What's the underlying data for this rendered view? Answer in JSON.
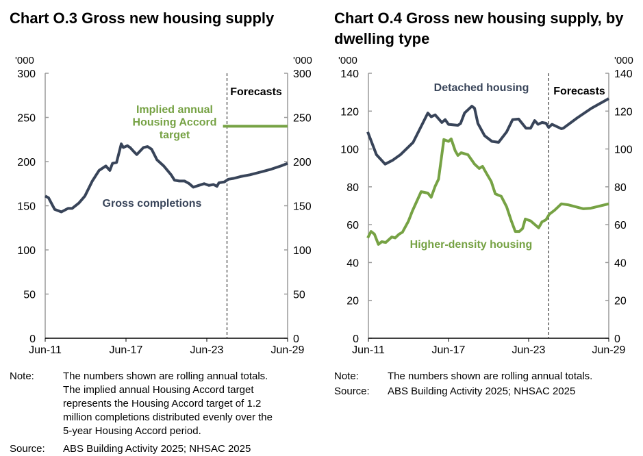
{
  "colors": {
    "navy": "#384459",
    "green": "#76a244",
    "axis": "#9a9a9a",
    "text": "#000000"
  },
  "chart_data": [
    {
      "type": "line",
      "title": "Chart O.3 Gross new housing supply",
      "unit_label": "'000",
      "ylim": [
        0,
        300
      ],
      "yticks": [
        0,
        50,
        100,
        150,
        200,
        250,
        300
      ],
      "xlim": [
        2011.5,
        2029.5
      ],
      "xticks": [
        {
          "x": 2011.5,
          "label": "Jun-11"
        },
        {
          "x": 2017.5,
          "label": "Jun-17"
        },
        {
          "x": 2023.5,
          "label": "Jun-23"
        },
        {
          "x": 2029.5,
          "label": "Jun-29"
        }
      ],
      "forecast_start": 2025.0,
      "forecast_label": "Forecasts",
      "series": [
        {
          "name": "Gross completions",
          "color": "#384459",
          "label_lines": [
            "Gross completions"
          ],
          "points": [
            [
              2011.5,
              161
            ],
            [
              2011.75,
              159
            ],
            [
              2012.2,
              146
            ],
            [
              2012.7,
              143
            ],
            [
              2013.2,
              147
            ],
            [
              2013.5,
              147
            ],
            [
              2014.0,
              153
            ],
            [
              2014.45,
              161
            ],
            [
              2015.0,
              178
            ],
            [
              2015.5,
              190
            ],
            [
              2016.0,
              195
            ],
            [
              2016.3,
              190
            ],
            [
              2016.5,
              198
            ],
            [
              2016.8,
              199
            ],
            [
              2017.15,
              220
            ],
            [
              2017.3,
              216
            ],
            [
              2017.6,
              218
            ],
            [
              2017.8,
              216
            ],
            [
              2018.1,
              211
            ],
            [
              2018.3,
              208
            ],
            [
              2018.8,
              216
            ],
            [
              2019.1,
              217
            ],
            [
              2019.4,
              214
            ],
            [
              2019.8,
              202
            ],
            [
              2020.3,
              195
            ],
            [
              2020.85,
              185
            ],
            [
              2021.1,
              179
            ],
            [
              2021.45,
              178
            ],
            [
              2021.85,
              178
            ],
            [
              2022.2,
              175
            ],
            [
              2022.5,
              171
            ],
            [
              2022.9,
              173
            ],
            [
              2023.3,
              175
            ],
            [
              2023.65,
              173
            ],
            [
              2024.0,
              174
            ],
            [
              2024.25,
              172
            ],
            [
              2024.4,
              176
            ],
            [
              2024.8,
              177
            ],
            [
              2025.1,
              180
            ],
            [
              2025.5,
              181
            ],
            [
              2026.0,
              183
            ],
            [
              2026.7,
              185
            ],
            [
              2027.45,
              188
            ],
            [
              2028.2,
              191
            ],
            [
              2029.0,
              195
            ],
            [
              2029.5,
              198
            ]
          ]
        },
        {
          "name": "Implied annual Housing Accord target",
          "color": "#76a244",
          "label_lines": [
            "Implied annual",
            "Housing Accord",
            "target"
          ],
          "points": [
            [
              2024.7,
              240
            ],
            [
              2029.5,
              240
            ]
          ]
        }
      ],
      "notes": {
        "note_label": "Note:",
        "note_lines": [
          "The numbers shown are rolling annual totals.",
          "The implied annual Housing Accord target",
          "represents the Housing Accord target of 1.2",
          "million completions distributed evenly over the",
          "5-year Housing Accord period."
        ],
        "source_label": "Source:",
        "source_text": "ABS Building Activity 2025; NHSAC 2025"
      }
    },
    {
      "type": "line",
      "title": "Chart O.4 Gross new housing supply, by dwelling type",
      "title_lines": [
        "Chart O.4 Gross new housing supply, by",
        "dwelling type"
      ],
      "unit_label": "'000",
      "ylim": [
        0,
        140
      ],
      "yticks": [
        0,
        20,
        40,
        60,
        80,
        100,
        120,
        140
      ],
      "xlim": [
        2011.5,
        2029.5
      ],
      "xticks": [
        {
          "x": 2011.5,
          "label": "Jun-11"
        },
        {
          "x": 2017.5,
          "label": "Jun-17"
        },
        {
          "x": 2023.5,
          "label": "Jun-23"
        },
        {
          "x": 2029.5,
          "label": "Jun-29"
        }
      ],
      "forecast_start": 2025.0,
      "forecast_label": "Forecasts",
      "series": [
        {
          "name": "Detached housing",
          "color": "#384459",
          "label_lines": [
            "Detached housing"
          ],
          "points": [
            [
              2011.45,
              109
            ],
            [
              2012.1,
              97
            ],
            [
              2012.75,
              92
            ],
            [
              2013.3,
              94
            ],
            [
              2013.9,
              97
            ],
            [
              2014.85,
              103.5
            ],
            [
              2015.95,
              119
            ],
            [
              2016.2,
              117
            ],
            [
              2016.5,
              118
            ],
            [
              2017.0,
              114
            ],
            [
              2017.25,
              115.5
            ],
            [
              2017.5,
              113
            ],
            [
              2018.2,
              112.5
            ],
            [
              2018.4,
              113.5
            ],
            [
              2018.7,
              119
            ],
            [
              2019.25,
              122.6
            ],
            [
              2019.45,
              121.5
            ],
            [
              2019.7,
              113.5
            ],
            [
              2020.2,
              107
            ],
            [
              2020.75,
              104
            ],
            [
              2021.25,
              103.5
            ],
            [
              2021.85,
              109
            ],
            [
              2022.3,
              115.5
            ],
            [
              2022.75,
              115.8
            ],
            [
              2023.3,
              111
            ],
            [
              2023.65,
              111
            ],
            [
              2023.95,
              115
            ],
            [
              2024.2,
              113
            ],
            [
              2024.5,
              114
            ],
            [
              2024.8,
              113.6
            ],
            [
              2025.0,
              111.4
            ],
            [
              2025.25,
              113
            ],
            [
              2025.95,
              110.7
            ],
            [
              2026.1,
              111
            ],
            [
              2027.15,
              116.5
            ],
            [
              2028.2,
              121.5
            ],
            [
              2029.5,
              126.6
            ]
          ]
        },
        {
          "name": "Higher-density housing",
          "color": "#76a244",
          "label_lines": [
            "Higher-density housing"
          ],
          "points": [
            [
              2011.45,
              53
            ],
            [
              2011.7,
              56.4
            ],
            [
              2011.95,
              55
            ],
            [
              2012.25,
              49.6
            ],
            [
              2012.5,
              51
            ],
            [
              2012.8,
              50.6
            ],
            [
              2013.25,
              53.5
            ],
            [
              2013.5,
              53
            ],
            [
              2013.8,
              55
            ],
            [
              2014.05,
              56
            ],
            [
              2014.5,
              61.9
            ],
            [
              2014.8,
              67.3
            ],
            [
              2015.1,
              72
            ],
            [
              2015.45,
              77.4
            ],
            [
              2015.95,
              76.7
            ],
            [
              2016.2,
              74.5
            ],
            [
              2016.5,
              80.3
            ],
            [
              2016.75,
              84
            ],
            [
              2017.15,
              105
            ],
            [
              2017.5,
              104
            ],
            [
              2017.7,
              105.3
            ],
            [
              2018.0,
              99
            ],
            [
              2018.2,
              96.6
            ],
            [
              2018.45,
              98
            ],
            [
              2018.95,
              97
            ],
            [
              2019.45,
              92
            ],
            [
              2019.8,
              89.7
            ],
            [
              2020.05,
              90.8
            ],
            [
              2020.3,
              87.6
            ],
            [
              2020.7,
              82.8
            ],
            [
              2021.0,
              76.3
            ],
            [
              2021.45,
              75
            ],
            [
              2021.85,
              69.5
            ],
            [
              2022.2,
              62
            ],
            [
              2022.5,
              56.4
            ],
            [
              2022.8,
              56.4
            ],
            [
              2023.05,
              58
            ],
            [
              2023.25,
              63
            ],
            [
              2023.65,
              62
            ],
            [
              2024.25,
              58.3
            ],
            [
              2024.5,
              61.5
            ],
            [
              2024.8,
              62.6
            ],
            [
              2025.05,
              65.5
            ],
            [
              2025.45,
              67.7
            ],
            [
              2025.95,
              71
            ],
            [
              2026.45,
              70.5
            ],
            [
              2027.6,
              68.4
            ],
            [
              2028.15,
              68.7
            ],
            [
              2029.5,
              71
            ]
          ]
        }
      ],
      "notes": {
        "note_label": "Note:",
        "note_lines": [
          "The numbers shown are rolling annual totals."
        ],
        "source_label": "Source:",
        "source_text": "ABS Building Activity 2025; NHSAC 2025"
      }
    }
  ]
}
